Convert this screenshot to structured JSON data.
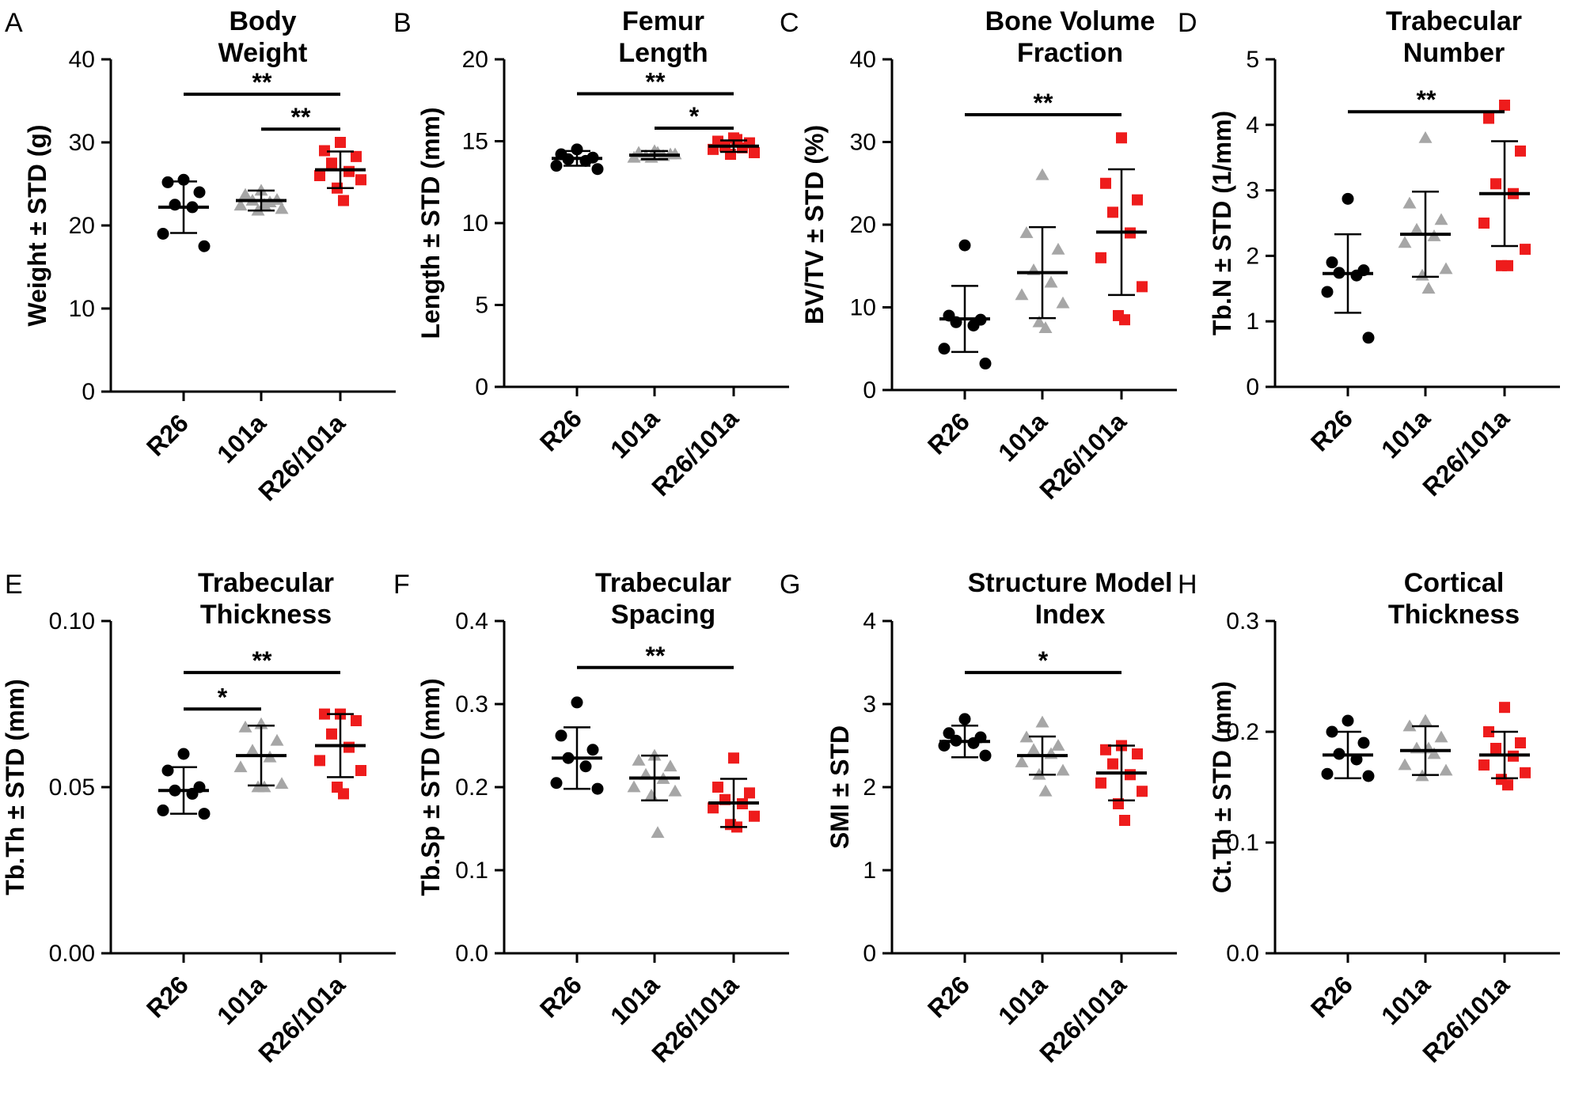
{
  "colors": {
    "R26": "#000000",
    "101a": "#a6a6a6",
    "R26/101a": "#ee1c1c"
  },
  "chart_data": [
    {
      "type": "scatter",
      "panel": "A",
      "title": [
        "Body",
        "Weight"
      ],
      "ylabel": "Weight ± STD (g)",
      "ylim": [
        0,
        40
      ],
      "yticks": [
        0,
        10,
        20,
        30,
        40
      ],
      "ytick_labels": [
        "0",
        "10",
        "20",
        "30",
        "40"
      ],
      "categories": [
        "R26",
        "101a",
        "R26/101a"
      ],
      "series": [
        {
          "name": "R26",
          "mean": 22.2,
          "std": 3.1,
          "points": [
            25.5,
            25.2,
            24.0,
            22.5,
            22.2,
            19.0,
            17.5
          ]
        },
        {
          "name": "101a",
          "mean": 23.0,
          "std": 1.2,
          "points": [
            24.2,
            23.7,
            23.1,
            23.0,
            22.8,
            22.4,
            22.0,
            21.8,
            22.5
          ]
        },
        {
          "name": "R26/101a",
          "mean": 26.7,
          "std": 2.2,
          "points": [
            30.0,
            29.0,
            28.3,
            27.5,
            26.5,
            26.0,
            25.5,
            24.5,
            23.0
          ]
        }
      ],
      "significance": [
        {
          "from": 0,
          "to": 2,
          "y": 35.8,
          "label": "**"
        },
        {
          "from": 1,
          "to": 2,
          "y": 31.6,
          "label": "**"
        }
      ]
    },
    {
      "type": "scatter",
      "panel": "B",
      "title": [
        "Femur",
        "Length"
      ],
      "ylabel": "Length ± STD  (mm)",
      "ylim": [
        0,
        20
      ],
      "yticks": [
        0,
        5,
        10,
        15,
        20
      ],
      "ytick_labels": [
        "0",
        "5",
        "10",
        "15",
        "20"
      ],
      "categories": [
        "R26",
        "101a",
        "R26/101a"
      ],
      "series": [
        {
          "name": "R26",
          "mean": 13.95,
          "std": 0.45,
          "points": [
            14.5,
            14.2,
            14.0,
            13.9,
            13.8,
            13.5,
            13.3
          ]
        },
        {
          "name": "101a",
          "mean": 14.15,
          "std": 0.25,
          "points": [
            14.4,
            14.3,
            14.2,
            14.1,
            14.1,
            14.0,
            14.2,
            14.0,
            14.3
          ]
        },
        {
          "name": "R26/101a",
          "mean": 14.7,
          "std": 0.35,
          "points": [
            15.2,
            15.0,
            14.9,
            14.7,
            14.6,
            14.5,
            14.3,
            14.2,
            15.1
          ]
        }
      ],
      "significance": [
        {
          "from": 0,
          "to": 2,
          "y": 17.9,
          "label": "**"
        },
        {
          "from": 1,
          "to": 2,
          "y": 15.8,
          "label": "*"
        }
      ]
    },
    {
      "type": "scatter",
      "panel": "C",
      "title": [
        "Bone Volume",
        "Fraction"
      ],
      "ylabel": "BV/TV ± STD (%)",
      "ylim": [
        0,
        40
      ],
      "yticks": [
        0,
        10,
        20,
        30,
        40
      ],
      "ytick_labels": [
        "0",
        "10",
        "20",
        "30",
        "40"
      ],
      "categories": [
        "R26",
        "101a",
        "R26/101a"
      ],
      "series": [
        {
          "name": "R26",
          "mean": 8.6,
          "std": 4.0,
          "points": [
            17.5,
            9.0,
            8.5,
            8.2,
            7.8,
            5.0,
            3.2
          ]
        },
        {
          "name": "101a",
          "mean": 14.2,
          "std": 5.5,
          "points": [
            26.0,
            19.0,
            17.0,
            14.5,
            13.0,
            11.5,
            10.5,
            8.2,
            7.5
          ]
        },
        {
          "name": "R26/101a",
          "mean": 19.1,
          "std": 7.6,
          "points": [
            30.5,
            25.0,
            23.0,
            21.5,
            19.0,
            16.0,
            12.5,
            9.0,
            8.5
          ]
        }
      ],
      "significance": [
        {
          "from": 0,
          "to": 2,
          "y": 33.3,
          "label": "**"
        }
      ]
    },
    {
      "type": "scatter",
      "panel": "D",
      "title": [
        "Trabecular",
        "Number"
      ],
      "ylabel": "Tb.N ± STD (1/mm)",
      "ylim": [
        0,
        5
      ],
      "yticks": [
        0,
        1,
        2,
        3,
        4,
        5
      ],
      "ytick_labels": [
        "0",
        "1",
        "2",
        "3",
        "4",
        "5"
      ],
      "categories": [
        "R26",
        "101a",
        "R26/101a"
      ],
      "series": [
        {
          "name": "R26",
          "mean": 1.73,
          "std": 0.6,
          "points": [
            2.87,
            1.9,
            1.78,
            1.74,
            1.7,
            1.45,
            0.75
          ]
        },
        {
          "name": "101a",
          "mean": 2.33,
          "std": 0.65,
          "points": [
            3.8,
            2.8,
            2.55,
            2.4,
            2.3,
            2.2,
            1.8,
            1.7,
            1.5
          ]
        },
        {
          "name": "R26/101a",
          "mean": 2.95,
          "std": 0.8,
          "points": [
            4.3,
            4.1,
            3.6,
            3.1,
            2.95,
            2.5,
            2.1,
            1.85,
            1.85
          ]
        }
      ],
      "significance": [
        {
          "from": 0,
          "to": 2,
          "y": 4.2,
          "label": "**"
        }
      ]
    },
    {
      "type": "scatter",
      "panel": "E",
      "title": [
        "Trabecular",
        "Thickness"
      ],
      "ylabel": "Tb.Th ± STD (mm)",
      "ylim": [
        0,
        0.1
      ],
      "yticks": [
        0,
        0.05,
        0.1
      ],
      "ytick_labels": [
        "0.00",
        "0.05",
        "0.10"
      ],
      "categories": [
        "R26",
        "101a",
        "R26/101a"
      ],
      "series": [
        {
          "name": "R26",
          "mean": 0.049,
          "std": 0.007,
          "points": [
            0.06,
            0.055,
            0.05,
            0.049,
            0.048,
            0.043,
            0.042
          ]
        },
        {
          "name": "101a",
          "mean": 0.0595,
          "std": 0.009,
          "points": [
            0.069,
            0.068,
            0.064,
            0.061,
            0.059,
            0.056,
            0.051,
            0.05,
            0.05
          ]
        },
        {
          "name": "R26/101a",
          "mean": 0.0625,
          "std": 0.0095,
          "points": [
            0.072,
            0.072,
            0.07,
            0.066,
            0.062,
            0.058,
            0.055,
            0.05,
            0.048
          ]
        }
      ],
      "significance": [
        {
          "from": 0,
          "to": 2,
          "y": 0.0845,
          "label": "**"
        },
        {
          "from": 0,
          "to": 1,
          "y": 0.0735,
          "label": "*"
        }
      ]
    },
    {
      "type": "scatter",
      "panel": "F",
      "title": [
        "Trabecular",
        "Spacing"
      ],
      "ylabel": "Tb.Sp ± STD (mm)",
      "ylim": [
        0,
        0.4
      ],
      "yticks": [
        0,
        0.1,
        0.2,
        0.3,
        0.4
      ],
      "ytick_labels": [
        "0.0",
        "0.1",
        "0.2",
        "0.3",
        "0.4"
      ],
      "categories": [
        "R26",
        "101a",
        "R26/101a"
      ],
      "series": [
        {
          "name": "R26",
          "mean": 0.235,
          "std": 0.037,
          "points": [
            0.302,
            0.262,
            0.245,
            0.235,
            0.225,
            0.205,
            0.198
          ]
        },
        {
          "name": "101a",
          "mean": 0.211,
          "std": 0.027,
          "points": [
            0.238,
            0.232,
            0.225,
            0.215,
            0.21,
            0.2,
            0.195,
            0.19,
            0.145
          ]
        },
        {
          "name": "R26/101a",
          "mean": 0.181,
          "std": 0.029,
          "points": [
            0.235,
            0.2,
            0.193,
            0.185,
            0.18,
            0.175,
            0.165,
            0.155,
            0.152
          ]
        }
      ],
      "significance": [
        {
          "from": 0,
          "to": 2,
          "y": 0.344,
          "label": "**"
        }
      ]
    },
    {
      "type": "scatter",
      "panel": "G",
      "title": [
        "Structure Model",
        "Index"
      ],
      "ylabel": "SMI ± STD",
      "ylim": [
        0,
        4
      ],
      "yticks": [
        0,
        1,
        2,
        3,
        4
      ],
      "ytick_labels": [
        "0",
        "1",
        "2",
        "3",
        "4"
      ],
      "categories": [
        "R26",
        "101a",
        "R26/101a"
      ],
      "series": [
        {
          "name": "R26",
          "mean": 2.55,
          "std": 0.19,
          "points": [
            2.82,
            2.65,
            2.6,
            2.56,
            2.53,
            2.5,
            2.38
          ]
        },
        {
          "name": "101a",
          "mean": 2.38,
          "std": 0.23,
          "points": [
            2.78,
            2.6,
            2.5,
            2.45,
            2.4,
            2.3,
            2.2,
            2.15,
            1.95
          ]
        },
        {
          "name": "R26/101a",
          "mean": 2.17,
          "std": 0.33,
          "points": [
            2.5,
            2.45,
            2.4,
            2.28,
            2.15,
            2.05,
            1.95,
            1.8,
            1.6
          ]
        }
      ],
      "significance": [
        {
          "from": 0,
          "to": 2,
          "y": 3.38,
          "label": "*"
        }
      ]
    },
    {
      "type": "scatter",
      "panel": "H",
      "title": [
        "Cortical",
        "Thickness"
      ],
      "ylabel": "Ct.Th ± STD (mm)",
      "ylim": [
        0,
        0.3
      ],
      "yticks": [
        0,
        0.1,
        0.2,
        0.3
      ],
      "ytick_labels": [
        "0.0",
        "0.1",
        "0.2",
        "0.3"
      ],
      "categories": [
        "R26",
        "101a",
        "R26/101a"
      ],
      "series": [
        {
          "name": "R26",
          "mean": 0.179,
          "std": 0.021,
          "points": [
            0.21,
            0.2,
            0.19,
            0.18,
            0.175,
            0.162,
            0.16
          ]
        },
        {
          "name": "101a",
          "mean": 0.183,
          "std": 0.022,
          "points": [
            0.21,
            0.205,
            0.195,
            0.185,
            0.18,
            0.17,
            0.165,
            0.16,
            0.185
          ]
        },
        {
          "name": "R26/101a",
          "mean": 0.179,
          "std": 0.021,
          "points": [
            0.222,
            0.2,
            0.19,
            0.185,
            0.178,
            0.17,
            0.163,
            0.157,
            0.152
          ]
        }
      ],
      "significance": []
    }
  ]
}
